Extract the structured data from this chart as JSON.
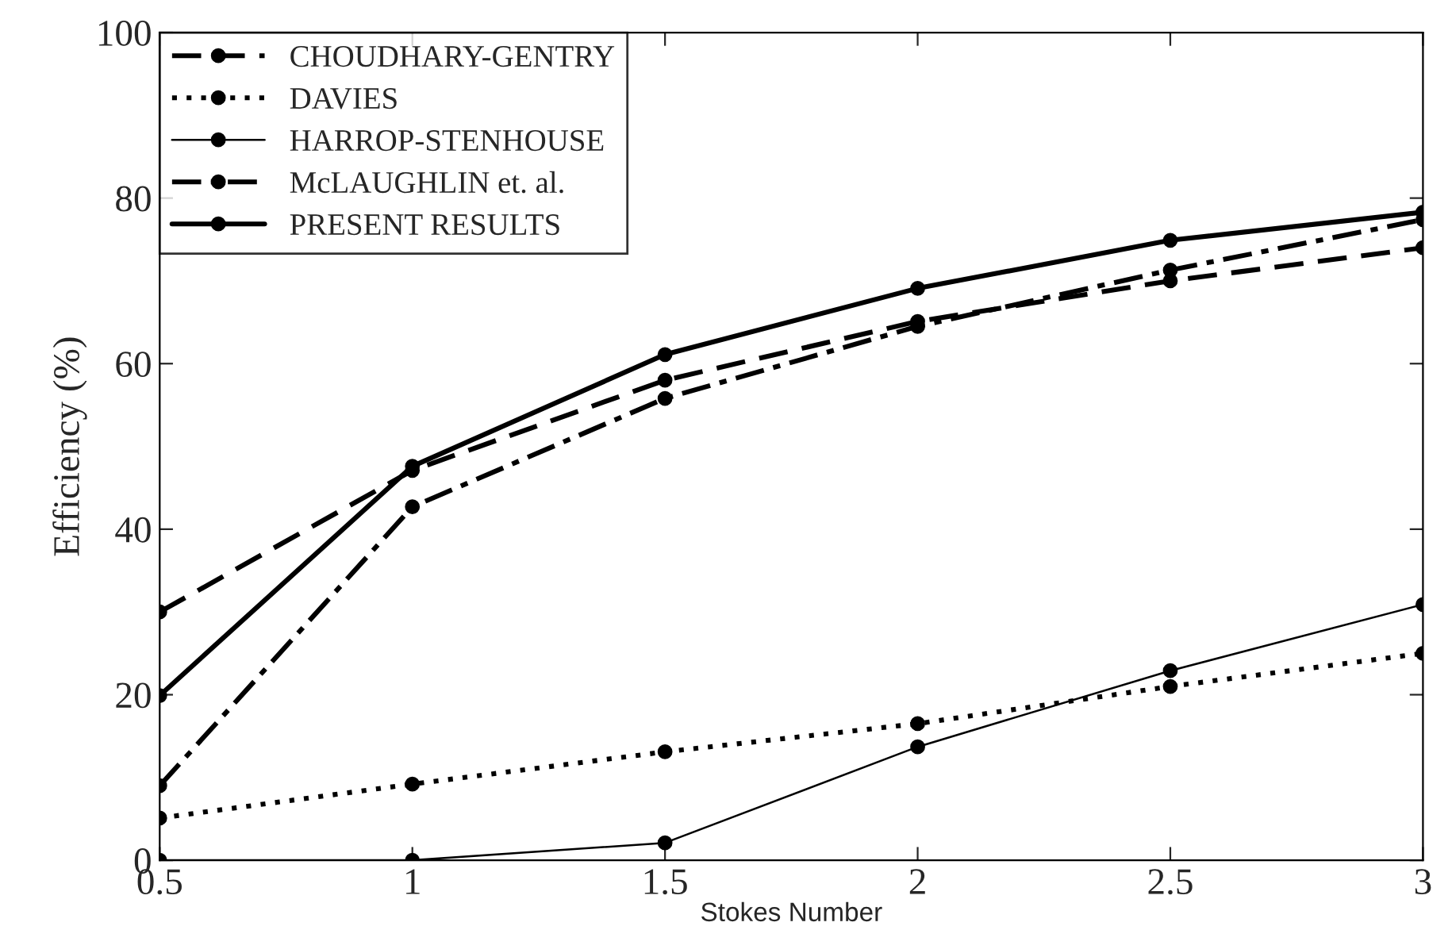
{
  "chart_data": {
    "type": "line",
    "xlabel": "Stokes Number",
    "ylabel": "Efficiency (%)",
    "x": [
      0.5,
      1,
      1.5,
      2,
      2.5,
      3
    ],
    "xlim": [
      0.5,
      3
    ],
    "xticks": [
      0.5,
      1,
      1.5,
      2,
      2.5,
      3
    ],
    "ylim": [
      0,
      100
    ],
    "yticks": [
      0,
      20,
      40,
      60,
      80,
      100
    ],
    "grid": false,
    "legend": "top left",
    "marker": "circle",
    "series": [
      {
        "name": "CHOUDHARY-GENTRY",
        "color": "#000000",
        "line_style": "dashed",
        "values": [
          30,
          47.1,
          58,
          65.1,
          70,
          74
        ]
      },
      {
        "name": "DAVIES",
        "color": "#000000",
        "line_style": "dotted",
        "values": [
          5.1,
          9.2,
          13.1,
          16.5,
          21,
          25
        ]
      },
      {
        "name": "HARROP-STENHOUSE",
        "color": "#000000",
        "line_style": "solid",
        "values": [
          0,
          0,
          2.1,
          13.7,
          22.9,
          30.9
        ]
      },
      {
        "name": "McLAUGHLIN et. al.",
        "color": "#000000",
        "line_style": "dashdot",
        "values": [
          9,
          42.7,
          55.8,
          64.5,
          71.3,
          77.4
        ]
      },
      {
        "name": "PRESENT RESULTS",
        "color": "#000000",
        "line_style": "solid",
        "values": [
          19.9,
          47.6,
          61.1,
          69.1,
          74.9,
          78.3
        ]
      }
    ]
  }
}
